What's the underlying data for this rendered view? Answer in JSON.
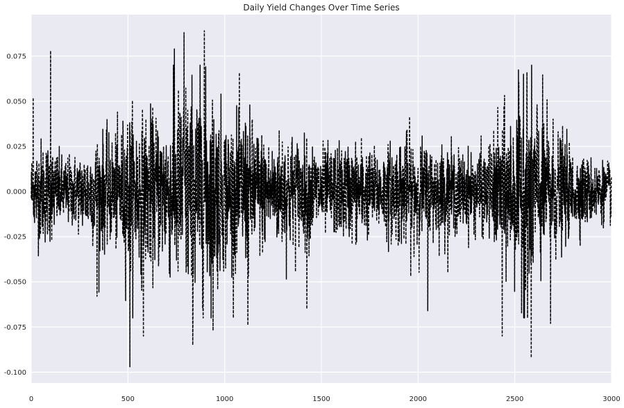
{
  "chart_data": {
    "type": "line",
    "title": "Daily Yield Changes Over Time Series",
    "xlabel": "",
    "ylabel": "",
    "xlim": [
      0,
      3000
    ],
    "ylim": [
      -0.106,
      0.098
    ],
    "x_ticks": [
      0,
      500,
      1000,
      1500,
      2000,
      2500,
      3000
    ],
    "x_tick_labels": [
      "0",
      "500",
      "1000",
      "1500",
      "2000",
      "2500",
      "3000"
    ],
    "y_ticks": [
      -0.1,
      -0.075,
      -0.05,
      -0.025,
      0.0,
      0.025,
      0.05,
      0.075
    ],
    "y_tick_labels": [
      "-0.100",
      "-0.075",
      "-0.050",
      "-0.025",
      "0.000",
      "0.025",
      "0.050",
      "0.075"
    ],
    "grid": true,
    "legend": "none",
    "line_style": "dashed",
    "n_points": 3000,
    "series": [
      {
        "color": "#000000",
        "profile_x": [
          0,
          50,
          100,
          150,
          200,
          250,
          300,
          350,
          400,
          450,
          500,
          550,
          600,
          650,
          700,
          750,
          800,
          850,
          900,
          950,
          1000,
          1050,
          1100,
          1150,
          1200,
          1250,
          1300,
          1350,
          1400,
          1450,
          1500,
          1550,
          1600,
          1650,
          1700,
          1750,
          1800,
          1850,
          1900,
          1950,
          2000,
          2050,
          2100,
          2150,
          2200,
          2250,
          2300,
          2350,
          2400,
          2450,
          2500,
          2550,
          2600,
          2650,
          2700,
          2750,
          2800,
          2850,
          2900,
          2950,
          3000
        ],
        "profile_amplitude": [
          0.014,
          0.018,
          0.017,
          0.012,
          0.012,
          0.013,
          0.016,
          0.02,
          0.018,
          0.02,
          0.028,
          0.026,
          0.026,
          0.026,
          0.026,
          0.032,
          0.038,
          0.038,
          0.036,
          0.032,
          0.026,
          0.024,
          0.028,
          0.024,
          0.02,
          0.016,
          0.022,
          0.02,
          0.017,
          0.017,
          0.015,
          0.015,
          0.016,
          0.016,
          0.018,
          0.014,
          0.014,
          0.016,
          0.018,
          0.02,
          0.018,
          0.016,
          0.016,
          0.015,
          0.014,
          0.013,
          0.014,
          0.014,
          0.02,
          0.026,
          0.028,
          0.036,
          0.036,
          0.026,
          0.022,
          0.018,
          0.014,
          0.012,
          0.011,
          0.01,
          0.01
        ],
        "extremes": [
          [
            10,
            0.052
          ],
          [
            100,
            0.078
          ],
          [
            340,
            -0.058
          ],
          [
            510,
            -0.097
          ],
          [
            580,
            -0.08
          ],
          [
            740,
            0.079
          ],
          [
            790,
            0.088
          ],
          [
            835,
            -0.085
          ],
          [
            895,
            0.089
          ],
          [
            940,
            -0.077
          ],
          [
            1120,
            -0.074
          ],
          [
            1425,
            -0.065
          ],
          [
            2050,
            -0.066
          ],
          [
            2435,
            -0.08
          ],
          [
            2545,
            0.065
          ],
          [
            2585,
            -0.092
          ],
          [
            2685,
            -0.073
          ]
        ]
      }
    ]
  }
}
